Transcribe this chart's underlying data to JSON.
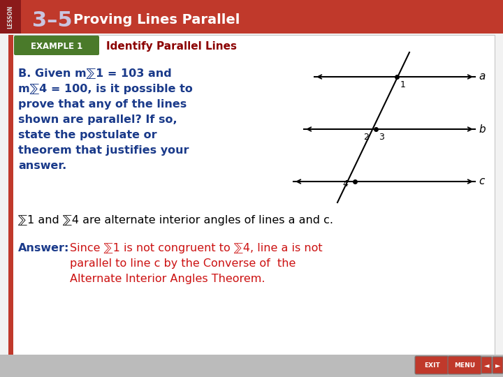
{
  "bg_color": "#f2f2f2",
  "header_color": "#c0392b",
  "header_dark": "#8b1a1a",
  "header_text": "3–5  Proving Lines Parallel",
  "example_box_color": "#4a7a2a",
  "example_label": "EXAMPLE 1",
  "example_title": "Identify Parallel Lines",
  "body_text_color": "#1a3a8a",
  "answer_label_color": "#1a3a8a",
  "answer_text_color": "#cc1111",
  "dark_red": "#8b0000",
  "question_line1": "B. Given m",
  "question_line1b": "1 = 103 and",
  "question_line2": "m",
  "question_line2b": "4 = 100, is it possible to",
  "question_line3": "prove that any of the lines",
  "question_line4": "shown are parallel? If so,",
  "question_line5": "state the postulate or",
  "question_line6": "theorem that justifies your",
  "question_line7": "answer.",
  "statement_text": "1 and  4 are alternate interior angles of lines a and c.",
  "answer_label": "Answer:",
  "answer_line1": "Since  1 is not congruent to  4, line a is not",
  "answer_line2": "parallel to line c by the Converse of  the",
  "answer_line3": "Alternate Interior Angles Theorem.",
  "left_border_color": "#c0392b",
  "footer_color": "#bbbbbb",
  "btn_color": "#c0392b"
}
